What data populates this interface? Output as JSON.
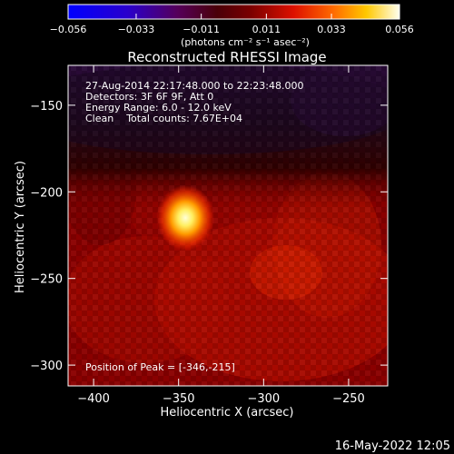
{
  "chart_data": {
    "type": "heatmap",
    "title": "Reconstructed RHESSI Image",
    "xlabel": "Heliocentric X (arcsec)",
    "ylabel": "Heliocentric Y (arcsec)",
    "xlim": [
      -415,
      -227
    ],
    "ylim": [
      -312,
      -127
    ],
    "x_ticks": [
      -400,
      -350,
      -300,
      -250
    ],
    "y_ticks": [
      -300,
      -250,
      -200,
      -150
    ],
    "colorbar": {
      "min": -0.056,
      "max": 0.056,
      "tick_values": [
        -0.056,
        -0.033,
        -0.011,
        0.011,
        0.033,
        0.056
      ],
      "tick_labels": [
        "−0.056",
        "−0.033",
        "−0.011",
        "0.011",
        "0.033",
        "0.056"
      ],
      "units": "(photons cm⁻² s⁻¹ asec⁻²)"
    },
    "annotations": [
      "27-Aug-2014 22:17:48.000 to 22:23:48.000",
      "Detectors: 3F 6F 9F, Att 0",
      "Energy Range: 6.0 - 12.0 keV",
      "Clean    Total counts: 7.67E+04"
    ],
    "peak_label": "Position of Peak = [-346,-215]",
    "peak": [
      -346,
      -215
    ],
    "footer_timestamp": "16-May-2022 12:05",
    "colors": {
      "background": "#000000",
      "text": "#ffffff"
    }
  }
}
